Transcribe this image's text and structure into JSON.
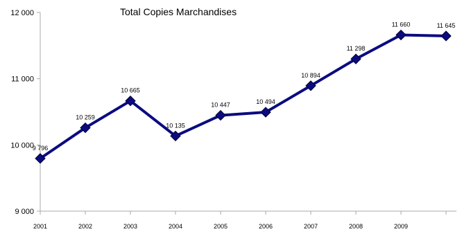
{
  "chart_data": {
    "type": "line",
    "title": "Total Copies Marchandises",
    "xlabel": "",
    "ylabel": "",
    "categories": [
      "2001",
      "2002",
      "2003",
      "2004",
      "2005",
      "2006",
      "2007",
      "2008",
      "2009",
      ""
    ],
    "series": [
      {
        "values": [
          9796,
          10259,
          10665,
          10135,
          10447,
          10494,
          10894,
          11298,
          11660,
          11645
        ],
        "labels": [
          "9 796",
          "10 259",
          "10 665",
          "10 135",
          "10 447",
          "10 494",
          "10 894",
          "11 298",
          "11 660",
          "11 645"
        ],
        "color": "#0b0b80"
      }
    ],
    "ylim": [
      9000,
      12000
    ],
    "yticks": [
      9000,
      10000,
      11000,
      12000
    ],
    "ytick_labels": [
      "9 000",
      "10 000",
      "11 000",
      "12 000"
    ],
    "grid": false,
    "legend": "none"
  }
}
